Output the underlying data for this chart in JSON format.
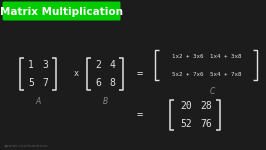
{
  "bg_color": "#1c1c1c",
  "title_text": "Matrix Multiplication",
  "title_bg": "#00cc00",
  "title_color": "#ffffff",
  "title_fontsize": 7.5,
  "matrix_color": "#e0e0e0",
  "label_color": "#888888",
  "A": [
    [
      "1",
      "3"
    ],
    [
      "5",
      "7"
    ]
  ],
  "B": [
    [
      "2",
      "4"
    ],
    [
      "6",
      "8"
    ]
  ],
  "C_formula": [
    [
      "1x2 + 3x6",
      "1x4 + 3x8"
    ],
    [
      "5x2 + 7x6",
      "5x4 + 7x8"
    ]
  ],
  "C_result": [
    [
      "20",
      "28"
    ],
    [
      "52",
      "76"
    ]
  ],
  "font_size_matrix": 7.0,
  "font_size_formula": 4.2,
  "font_size_label": 5.5,
  "font_size_eq": 7.5,
  "font_size_x": 6.0,
  "watermark": "aparat.com/samtezu",
  "watermark_color": "#555555",
  "watermark_fontsize": 3.2
}
